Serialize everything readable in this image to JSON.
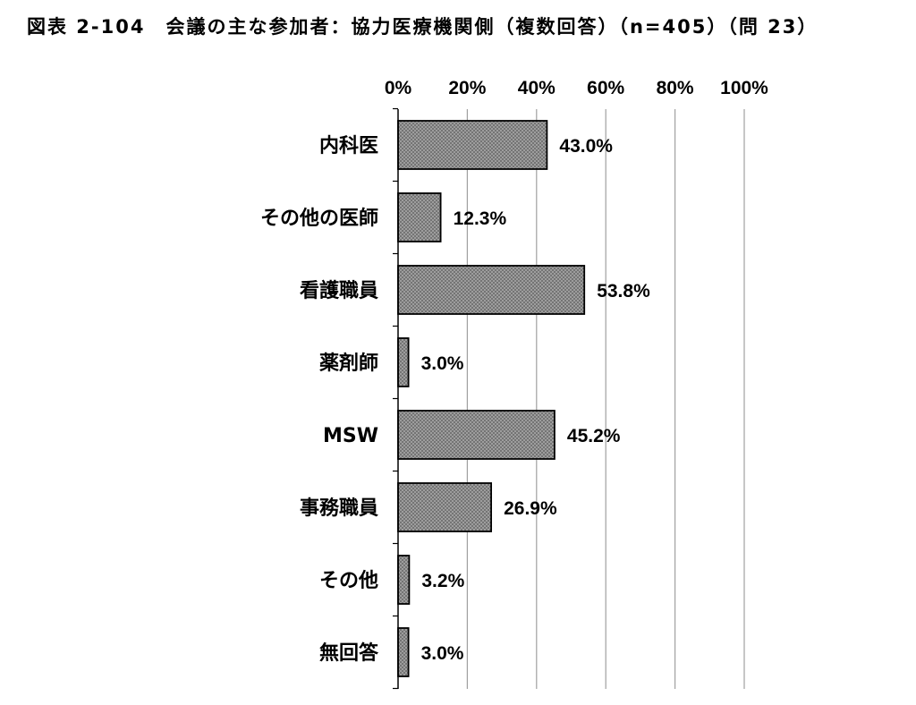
{
  "title": "図表 2-104　会議の主な参加者：協力医療機関側（複数回答）（n=405）（問 23）",
  "chart_data": {
    "type": "bar",
    "orientation": "horizontal",
    "categories": [
      "内科医",
      "その他の医師",
      "看護職員",
      "薬剤師",
      "MSW",
      "事務職員",
      "その他",
      "無回答"
    ],
    "values": [
      43.0,
      12.3,
      53.8,
      3.0,
      45.2,
      26.9,
      3.2,
      3.0
    ],
    "value_labels": [
      "43.0%",
      "12.3%",
      "53.8%",
      "3.0%",
      "45.2%",
      "26.9%",
      "3.2%",
      "3.0%"
    ],
    "xlim": [
      0,
      100
    ],
    "xticks": [
      0,
      20,
      40,
      60,
      80,
      100
    ],
    "xtick_labels": [
      "0%",
      "20%",
      "40%",
      "60%",
      "80%",
      "100%"
    ],
    "x_axis_position": "top",
    "grid": true,
    "legend": "none",
    "bar_fill": "#9a9a9a",
    "bar_pattern": "crosshatch",
    "bar_stroke": "#000000",
    "grid_color": "#a0a0a0"
  }
}
